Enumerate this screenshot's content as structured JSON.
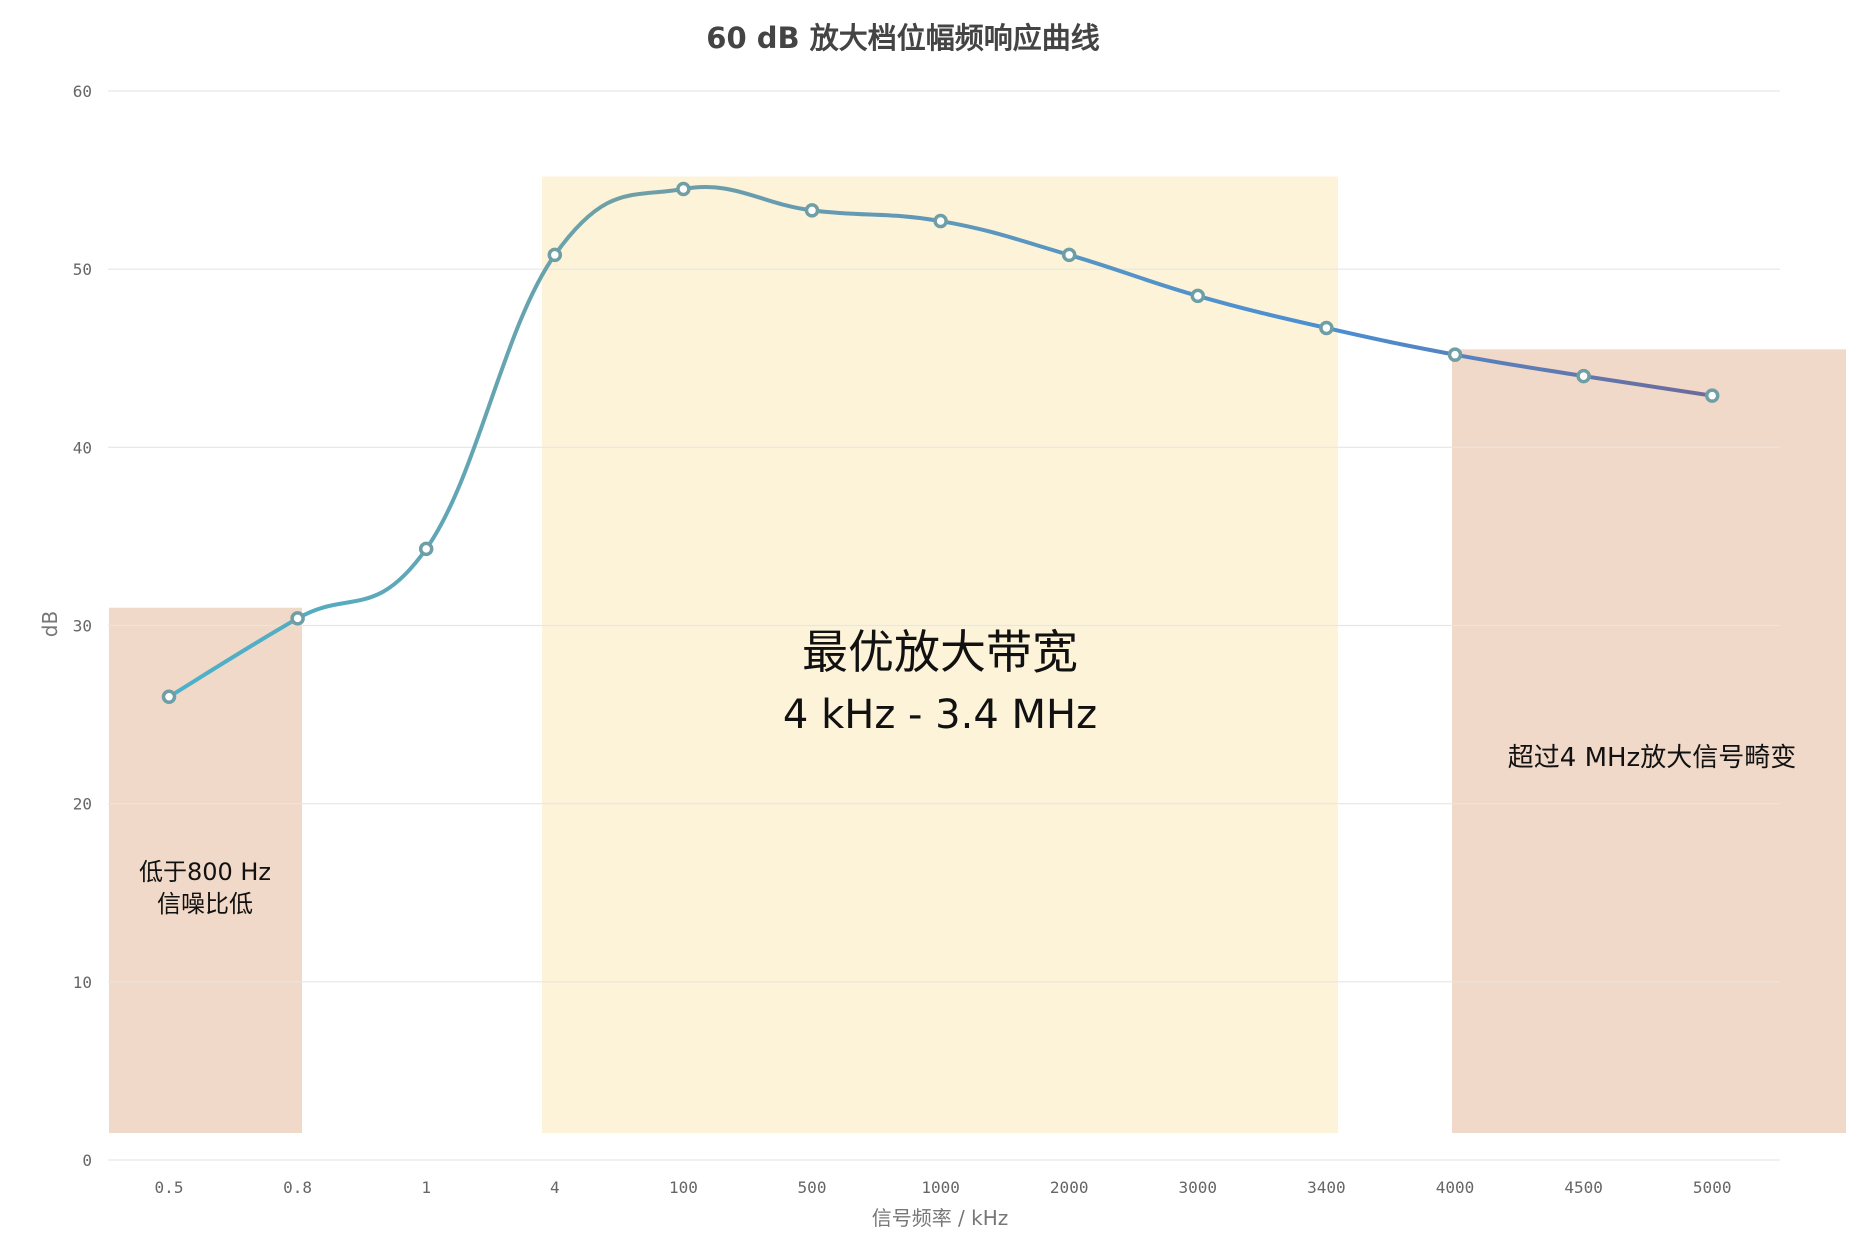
{
  "chart_data": {
    "type": "line",
    "title": "60 dB 放大档位幅频响应曲线",
    "xlabel": "信号频率 / kHz",
    "ylabel": "dB",
    "categories": [
      "0.5",
      "0.8",
      "1",
      "4",
      "100",
      "500",
      "1000",
      "2000",
      "3000",
      "3400",
      "4000",
      "4500",
      "5000"
    ],
    "series": [
      {
        "values": [
          26.0,
          30.4,
          34.3,
          50.8,
          54.5,
          53.3,
          52.7,
          50.8,
          48.5,
          46.7,
          45.2,
          44.0,
          42.9
        ]
      }
    ],
    "ylim": [
      0,
      60
    ],
    "yticks": [
      "0",
      "10",
      "20",
      "30",
      "40",
      "50",
      "60"
    ],
    "grid": true,
    "line_colors": [
      "#4bb1cc",
      "#6f9fa5",
      "#4a8fd4",
      "#6d6a9a"
    ],
    "marker_color": "#6f9fa5",
    "annotations": [
      {
        "id": "low",
        "text": [
          "低于800 Hz",
          "信噪比低"
        ],
        "from": "0.5",
        "to": "0.8",
        "ymax": 31.0,
        "color": "#f0d9c8"
      },
      {
        "id": "optimal",
        "text": [
          "最优放大带宽",
          "4 kHz - 3.4 MHz"
        ],
        "from": "4",
        "to": "3400",
        "ymax": 55.2,
        "color": "#fdf3d8"
      },
      {
        "id": "high",
        "text": [
          "超过4 MHz放大信号畸变"
        ],
        "from": "4000",
        "to": "5000",
        "ymax": 45.5,
        "color": "#f0d9c8"
      }
    ]
  }
}
